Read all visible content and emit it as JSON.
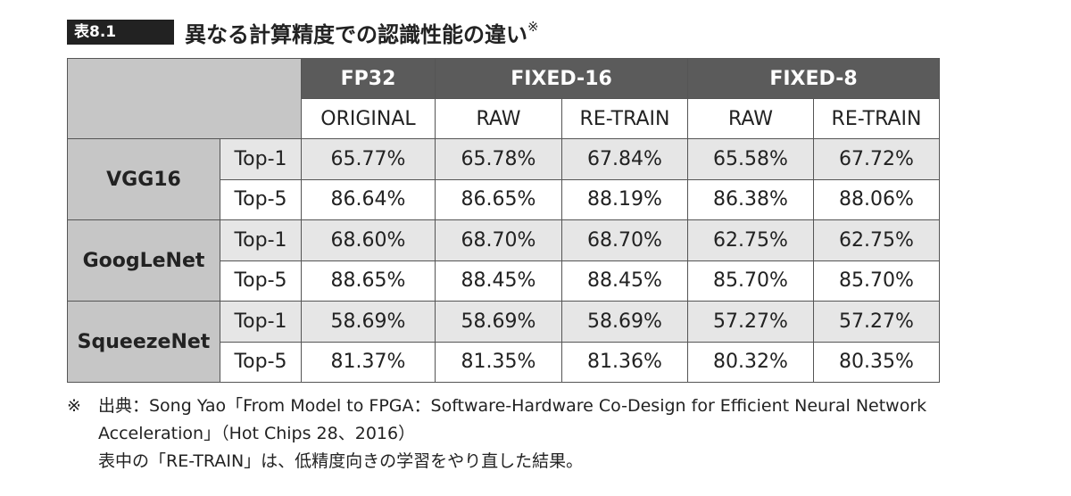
{
  "header": {
    "label": "表8.1",
    "title": "異なる計算精度での認識性能の違い",
    "mark": "※"
  },
  "table": {
    "groups": [
      "FP32",
      "FIXED-16",
      "FIXED-8"
    ],
    "columns": [
      "ORIGINAL",
      "RAW",
      "RE-TRAIN",
      "RAW",
      "RE-TRAIN"
    ],
    "models": [
      {
        "name": "VGG16",
        "rows": [
          {
            "metric": "Top-1",
            "values": [
              "65.77%",
              "65.78%",
              "67.84%",
              "65.58%",
              "67.72%"
            ]
          },
          {
            "metric": "Top-5",
            "values": [
              "86.64%",
              "86.65%",
              "88.19%",
              "86.38%",
              "88.06%"
            ]
          }
        ]
      },
      {
        "name": "GoogLeNet",
        "rows": [
          {
            "metric": "Top-1",
            "values": [
              "68.60%",
              "68.70%",
              "68.70%",
              "62.75%",
              "62.75%"
            ]
          },
          {
            "metric": "Top-5",
            "values": [
              "88.65%",
              "88.45%",
              "88.45%",
              "85.70%",
              "85.70%"
            ]
          }
        ]
      },
      {
        "name": "SqueezeNet",
        "rows": [
          {
            "metric": "Top-1",
            "values": [
              "58.69%",
              "58.69%",
              "58.69%",
              "57.27%",
              "57.27%"
            ]
          },
          {
            "metric": "Top-5",
            "values": [
              "81.37%",
              "81.35%",
              "81.36%",
              "80.32%",
              "80.35%"
            ]
          }
        ]
      }
    ]
  },
  "notes": {
    "mark": "※",
    "lines": [
      "出典：Song Yao「From Model to FPGA：Software-Hardware Co-Design for Efficient Neural Network",
      "Acceleration」（Hot Chips 28、2016）",
      "表中の「RE-TRAIN」は、低精度向きの学習をやり直した結果。"
    ]
  }
}
